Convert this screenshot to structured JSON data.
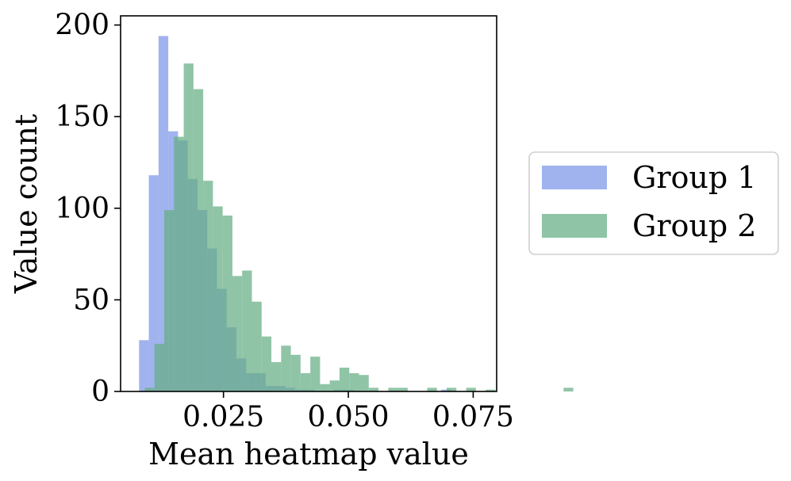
{
  "chart_data": {
    "type": "histogram",
    "xlabel": "Mean heatmap value",
    "ylabel": "Value count",
    "xlim": [
      0.0044,
      0.0797
    ],
    "ylim": [
      0,
      205
    ],
    "xticks": [
      0.025,
      0.05,
      0.075
    ],
    "xtick_labels": [
      "0.025",
      "0.050",
      "0.075"
    ],
    "yticks": [
      0,
      50,
      100,
      150,
      200
    ],
    "ytick_labels": [
      "0",
      "50",
      "100",
      "150",
      "200"
    ],
    "grid": false,
    "legend_position": "outside-right",
    "series": [
      {
        "name": "Group 1",
        "color": "#7b96e8",
        "opacity": 0.72,
        "bin_start": 0.0081,
        "bin_width": 0.00195,
        "values": [
          28,
          118,
          194,
          142,
          137,
          116,
          99,
          78,
          56,
          35,
          18,
          10,
          10,
          3,
          3,
          2,
          1,
          1,
          0,
          0,
          1,
          1,
          0,
          0,
          0,
          0,
          0,
          0,
          0,
          0,
          0,
          1,
          0,
          0,
          0
        ]
      },
      {
        "name": "Group 2",
        "color": "#65ad84",
        "opacity": 0.72,
        "bin_start": 0.00924,
        "bin_width": 0.00195,
        "values": [
          2,
          26,
          99,
          139,
          179,
          165,
          115,
          101,
          96,
          63,
          66,
          49,
          30,
          16,
          25,
          20,
          10,
          19,
          4,
          6,
          13,
          10,
          9,
          2,
          0,
          2,
          2,
          0,
          0,
          2,
          0,
          2,
          0,
          2,
          0,
          1,
          0,
          0,
          0,
          0,
          0,
          0,
          0,
          2
        ]
      }
    ]
  }
}
